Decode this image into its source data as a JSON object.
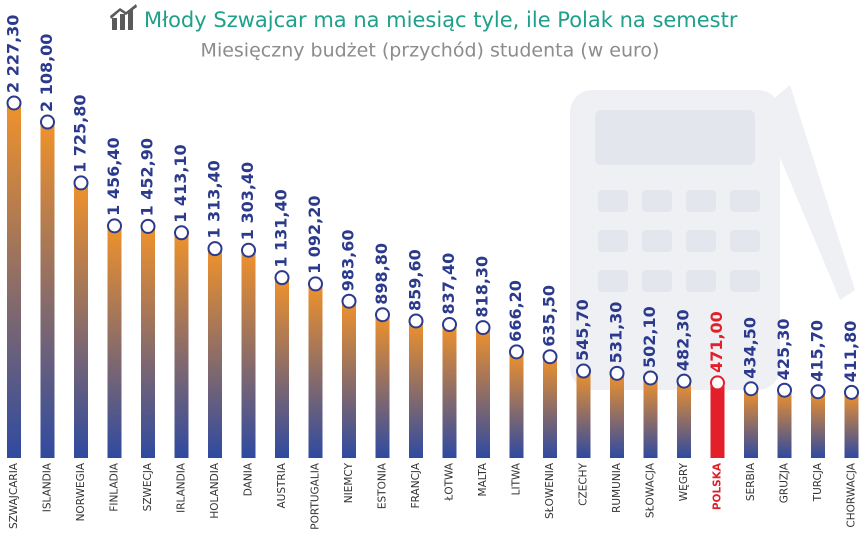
{
  "chart_data": {
    "type": "bar",
    "title": "Młody Szwajcar ma na miesiąc tyle, ile Polak na semestr",
    "subtitle": "Miesięczny budżet (przychód) studenta (w euro)",
    "categories": [
      "SZWAJCARIA",
      "ISLANDIA",
      "NORWEGIA",
      "FINLADIA",
      "SZWECJA",
      "IRLANDIA",
      "HOLANDIA",
      "DANIA",
      "AUSTRIA",
      "PORTUGALIA",
      "NIEMCY",
      "ESTONIA",
      "FRANCJA",
      "ŁOTWA",
      "MALTA",
      "LITWA",
      "SŁOWENIA",
      "CZECHY",
      "RUMUNIA",
      "SŁOWACJA",
      "WĘGRY",
      "POLSKA",
      "SERBIA",
      "GRUZJA",
      "TURCJA",
      "CHORWACJA"
    ],
    "values": [
      2227.3,
      2108,
      1725.8,
      1456.4,
      1452.9,
      1413.1,
      1313.4,
      1303.4,
      1131.4,
      1092.2,
      983.6,
      898.8,
      859.6,
      837.4,
      818.3,
      666.2,
      635.5,
      545.7,
      531.3,
      502.1,
      482.3,
      471,
      434.5,
      425.3,
      415.7,
      411.8
    ],
    "value_labels": [
      "2 227,30",
      "2 108,00",
      "1 725,80",
      "1 456,40",
      "1 452,90",
      "1 413,10",
      "1 313,40",
      "1 303,40",
      "1 131,40",
      "1 092,20",
      "983,60",
      "898,80",
      "859,60",
      "837,40",
      "818,30",
      "666,20",
      "635,50",
      "545,70",
      "531,30",
      "502,10",
      "482,30",
      "471,00",
      "434,50",
      "425,30",
      "415,70",
      "411,80"
    ],
    "color": "#f0922b",
    "color_bottom": "#2f4aa0",
    "highlight": "POLSKA",
    "highlight_color": "#e3202a"
  }
}
